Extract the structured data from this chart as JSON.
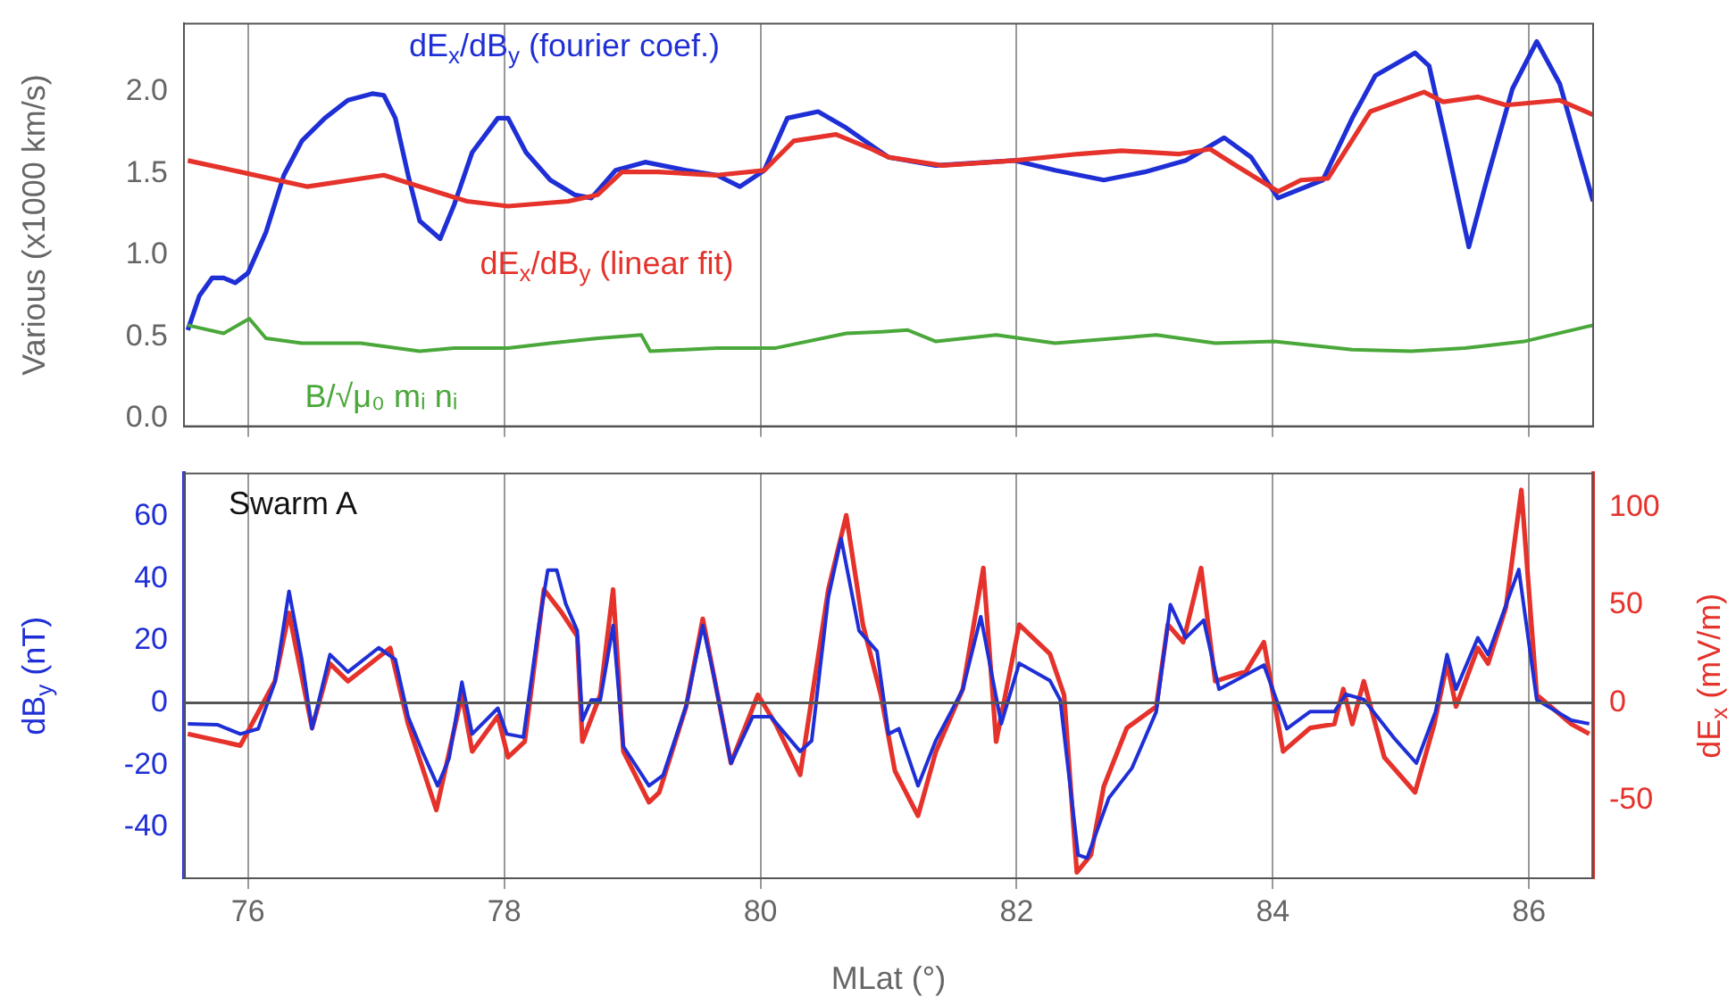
{
  "chart_data": [
    {
      "type": "line",
      "ylabel": "Various (x1000 km/s)",
      "xlim": [
        75.5,
        86.5
      ],
      "xticks": [
        76,
        78,
        80,
        82,
        84,
        86
      ],
      "ylim": [
        -0.05,
        2.42
      ],
      "yticks": [
        {
          "value": 0,
          "label": "0.0"
        },
        0.5,
        {
          "value": 1,
          "label": "1.0"
        },
        1.5,
        {
          "value": 2,
          "label": "2.0"
        }
      ],
      "grid": "x",
      "tick_labels": "y",
      "series": [
        {
          "name": "dE$_{x}$/dB$_{y}$ (fourier coef.)",
          "color": "#1f2fd6",
          "x": [
            75.53,
            75.62,
            75.72,
            75.81,
            75.9,
            76.0,
            76.14,
            76.28,
            76.42,
            76.6,
            76.78,
            76.97,
            77.06,
            77.15,
            77.25,
            77.34,
            77.5,
            77.61,
            77.75,
            77.95,
            78.03,
            78.17,
            78.36,
            78.55,
            78.68,
            78.87,
            79.1,
            79.42,
            79.66,
            79.84,
            80.03,
            80.21,
            80.45,
            80.67,
            80.87,
            81.0,
            81.37,
            81.98,
            82.3,
            82.68,
            83.0,
            83.32,
            83.62,
            83.83,
            84.04,
            84.39,
            84.62,
            84.8,
            85.11,
            85.22,
            85.36,
            85.53,
            85.68,
            85.87,
            86.06,
            86.24,
            86.5
          ],
          "values": [
            0.54,
            0.75,
            0.86,
            0.86,
            0.83,
            0.89,
            1.14,
            1.49,
            1.7,
            1.84,
            1.95,
            1.99,
            1.98,
            1.84,
            1.49,
            1.21,
            1.1,
            1.31,
            1.63,
            1.84,
            1.84,
            1.63,
            1.46,
            1.37,
            1.35,
            1.52,
            1.57,
            1.52,
            1.49,
            1.42,
            1.52,
            1.84,
            1.88,
            1.78,
            1.67,
            1.6,
            1.55,
            1.58,
            1.52,
            1.46,
            1.51,
            1.58,
            1.72,
            1.6,
            1.35,
            1.46,
            1.84,
            2.1,
            2.24,
            2.16,
            1.67,
            1.05,
            1.49,
            2.02,
            2.31,
            2.05,
            1.33
          ]
        },
        {
          "name": "dE$_{x}$/dB$_{y}$ (linear fit)",
          "color": "#e5322b",
          "x": [
            75.53,
            75.94,
            76.46,
            77.06,
            77.34,
            77.71,
            78.03,
            78.5,
            78.73,
            78.92,
            79.2,
            79.66,
            80.03,
            80.26,
            80.59,
            80.87,
            81.0,
            81.42,
            81.98,
            82.48,
            82.82,
            83.27,
            83.51,
            83.69,
            84.04,
            84.22,
            84.43,
            84.76,
            85.18,
            85.33,
            85.6,
            85.82,
            86.24,
            86.5
          ],
          "values": [
            1.58,
            1.51,
            1.42,
            1.49,
            1.42,
            1.33,
            1.3,
            1.33,
            1.37,
            1.51,
            1.51,
            1.49,
            1.52,
            1.7,
            1.74,
            1.65,
            1.6,
            1.55,
            1.58,
            1.62,
            1.64,
            1.62,
            1.65,
            1.56,
            1.39,
            1.46,
            1.47,
            1.88,
            2.0,
            1.94,
            1.97,
            1.92,
            1.95,
            1.86
          ]
        },
        {
          "name": "B/√μ₀ mᵢ nᵢ",
          "color": "#4aa83a",
          "x": [
            75.53,
            75.81,
            76.01,
            76.14,
            76.42,
            76.88,
            77.34,
            77.61,
            78.03,
            78.36,
            78.73,
            79.07,
            79.14,
            79.66,
            80.12,
            80.67,
            80.95,
            81.15,
            81.37,
            81.84,
            82.3,
            83.09,
            83.55,
            84.01,
            84.62,
            85.08,
            85.5,
            85.96,
            86.5
          ],
          "values": [
            0.57,
            0.52,
            0.61,
            0.49,
            0.46,
            0.46,
            0.41,
            0.43,
            0.43,
            0.46,
            0.49,
            0.51,
            0.41,
            0.43,
            0.43,
            0.52,
            0.53,
            0.54,
            0.47,
            0.51,
            0.46,
            0.51,
            0.46,
            0.47,
            0.42,
            0.41,
            0.43,
            0.47,
            0.57
          ]
        }
      ]
    },
    {
      "type": "line",
      "xlabel": "MLat (°)",
      "ylabel": "dB$_{y}$ (nT)",
      "y2label": "dE$_{x}$ (mV/m)",
      "annotations": [
        "Swarm A"
      ],
      "xlim": [
        75.5,
        86.5
      ],
      "xticks": [
        76,
        78,
        80,
        82,
        84,
        86
      ],
      "ylim": [
        -56.5,
        74
      ],
      "yticks": [
        -40,
        -20,
        0,
        20,
        40,
        60
      ],
      "y2lim": [
        -90,
        117.5
      ],
      "y2ticks": [
        -50,
        0,
        50,
        100
      ],
      "grid": "x",
      "ref_lines": [
        {
          "axis": "y",
          "value": 0,
          "color": "#555555"
        }
      ],
      "series": [
        {
          "color": "#e5322b",
          "axis": "y2",
          "x": [
            75.53,
            75.94,
            76.21,
            76.32,
            76.5,
            76.64,
            76.78,
            77.11,
            77.25,
            77.47,
            77.67,
            77.75,
            77.95,
            78.03,
            78.16,
            78.31,
            78.45,
            78.57,
            78.61,
            78.75,
            78.85,
            78.93,
            79.13,
            79.21,
            79.42,
            79.55,
            79.77,
            79.98,
            80.12,
            80.31,
            80.53,
            80.67,
            80.8,
            80.94,
            81.05,
            81.23,
            81.37,
            81.58,
            81.74,
            81.84,
            82.02,
            82.26,
            82.37,
            82.47,
            82.58,
            82.68,
            82.86,
            83.09,
            83.18,
            83.3,
            83.44,
            83.55,
            83.79,
            83.93,
            84.08,
            84.29,
            84.48,
            84.55,
            84.62,
            84.71,
            84.87,
            85.11,
            85.26,
            85.36,
            85.43,
            85.6,
            85.68,
            85.82,
            85.94,
            86.06,
            86.33,
            86.47
          ],
          "values": [
            -16,
            -22,
            11,
            46,
            -13,
            20,
            11,
            28,
            -11,
            -55,
            4,
            -25,
            -7,
            -28,
            -20,
            58,
            46,
            34,
            -20,
            4,
            58,
            -25,
            -51,
            -46,
            -2,
            43,
            -31,
            4,
            -11,
            -37,
            58,
            96,
            40,
            4,
            -35,
            -58,
            -25,
            7,
            69,
            -20,
            40,
            25,
            4,
            -87,
            -78,
            -43,
            -13,
            -2,
            40,
            31,
            69,
            11,
            16,
            31,
            -25,
            -13,
            -11,
            7,
            -11,
            11,
            -28,
            -46,
            -11,
            20,
            -2,
            28,
            20,
            49,
            109,
            4,
            -11,
            -16
          ]
        },
        {
          "color": "#1f2fd6",
          "x": [
            75.53,
            75.76,
            75.94,
            76.08,
            76.21,
            76.32,
            76.42,
            76.5,
            76.64,
            76.78,
            77.02,
            77.15,
            77.25,
            77.36,
            77.48,
            77.57,
            77.67,
            77.75,
            77.95,
            78.02,
            78.15,
            78.27,
            78.34,
            78.41,
            78.48,
            78.57,
            78.61,
            78.68,
            78.75,
            78.85,
            78.93,
            79.13,
            79.24,
            79.42,
            79.55,
            79.63,
            79.77,
            79.94,
            80.08,
            80.31,
            80.4,
            80.53,
            80.63,
            80.77,
            80.91,
            81.0,
            81.08,
            81.23,
            81.37,
            81.58,
            81.72,
            81.88,
            82.02,
            82.26,
            82.34,
            82.48,
            82.55,
            82.72,
            82.9,
            83.09,
            83.2,
            83.32,
            83.46,
            83.58,
            83.93,
            84.11,
            84.29,
            84.48,
            84.57,
            84.71,
            84.94,
            85.12,
            85.27,
            85.36,
            85.43,
            85.6,
            85.68,
            85.92,
            86.06,
            86.33,
            86.47
          ],
          "values": [
            -6.7,
            -7,
            -10,
            -8.3,
            6.7,
            36,
            14,
            -8.3,
            15.6,
            10,
            17.8,
            14,
            -4.4,
            -15.6,
            -26.7,
            -17.8,
            6.7,
            -10,
            -1.7,
            -10,
            -11,
            25,
            42.8,
            42.8,
            32,
            23.3,
            -5.6,
            1,
            1,
            25,
            -14,
            -26.7,
            -23.3,
            -1,
            25,
            10,
            -19.4,
            -4.4,
            -4.4,
            -15.6,
            -12.2,
            34,
            53,
            23.3,
            16.7,
            -10,
            -8.3,
            -26.7,
            -12,
            4.4,
            27.8,
            -6.7,
            12.8,
            7.2,
            1,
            -49,
            -50,
            -30.6,
            -21,
            -2.8,
            31.7,
            21,
            26.7,
            4.4,
            12.2,
            -8.3,
            -2.8,
            -2.8,
            2.8,
            1.1,
            -11,
            -19.4,
            -2.8,
            15.6,
            4.4,
            21,
            15.6,
            43,
            1,
            -5.6,
            -6.7
          ]
        }
      ]
    }
  ]
}
